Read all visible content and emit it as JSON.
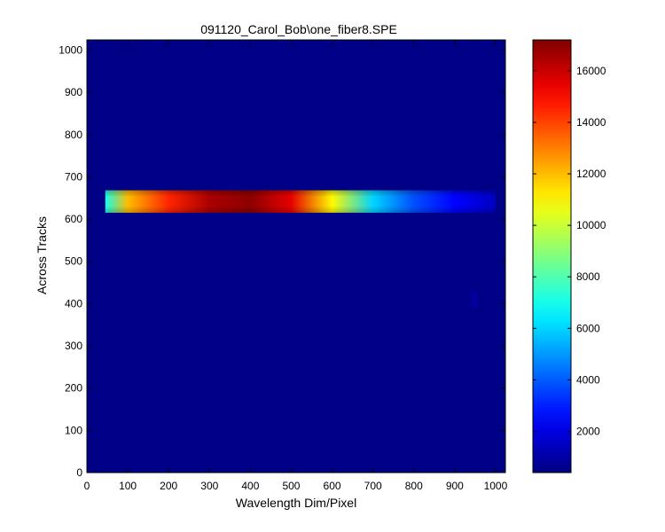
{
  "chart_data": {
    "type": "heatmap",
    "title": "091120_Carol_Bob\\one_fiber8.SPE",
    "xlabel": "Wavelength Dim/Pixel",
    "ylabel": "Across Tracks",
    "xlim": [
      0,
      1024
    ],
    "ylim": [
      0,
      1024
    ],
    "x_ticks": [
      0,
      100,
      200,
      300,
      400,
      500,
      600,
      700,
      800,
      900,
      1000
    ],
    "y_ticks": [
      0,
      100,
      200,
      300,
      400,
      500,
      600,
      700,
      800,
      900,
      1000
    ],
    "colorbar": {
      "colormap": "jet",
      "range": [
        400,
        17200
      ],
      "ticks": [
        2000,
        4000,
        6000,
        8000,
        10000,
        12000,
        14000,
        16000
      ]
    },
    "background_value": 500,
    "features": [
      {
        "kind": "fiber-track",
        "x_range": [
          45,
          1000
        ],
        "y_range": [
          615,
          668
        ],
        "profile": [
          {
            "x": 45,
            "value": 7000
          },
          {
            "x": 100,
            "value": 12000
          },
          {
            "x": 200,
            "value": 14500
          },
          {
            "x": 300,
            "value": 16500
          },
          {
            "x": 400,
            "value": 17000
          },
          {
            "x": 500,
            "value": 15500
          },
          {
            "x": 600,
            "value": 11000
          },
          {
            "x": 700,
            "value": 6000
          },
          {
            "x": 800,
            "value": 3800
          },
          {
            "x": 900,
            "value": 2500
          },
          {
            "x": 1000,
            "value": 1500
          }
        ]
      },
      {
        "kind": "faint-spot",
        "x_range": [
          940,
          955
        ],
        "y_range": [
          390,
          430
        ],
        "value": 1200
      }
    ]
  }
}
